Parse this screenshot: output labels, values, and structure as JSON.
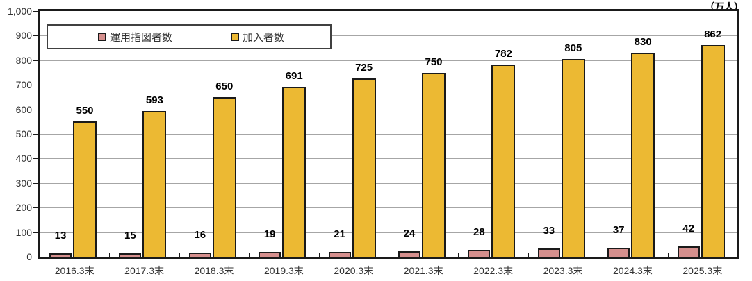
{
  "chart_data": {
    "type": "bar",
    "title": "",
    "unit_label": "（万人）",
    "categories": [
      "2016.3末",
      "2017.3末",
      "2018.3末",
      "2019.3末",
      "2020.3末",
      "2021.3末",
      "2022.3末",
      "2023.3末",
      "2024.3末",
      "2025.3末"
    ],
    "series": [
      {
        "key": "instruction-holders",
        "name": "運用指図者数",
        "color": "#d58f8d",
        "values": [
          13,
          15,
          16,
          19,
          21,
          24,
          28,
          33,
          37,
          42
        ]
      },
      {
        "key": "subscribers",
        "name": "加入者数",
        "color": "#ecb933",
        "values": [
          550,
          593,
          650,
          691,
          725,
          750,
          782,
          805,
          830,
          862
        ]
      }
    ],
    "ylim": [
      0,
      1000
    ],
    "ytick_interval": 100,
    "ytick_labels": [
      "0",
      "100",
      "200",
      "300",
      "400",
      "500",
      "600",
      "700",
      "800",
      "900",
      "1,000"
    ],
    "grid": true,
    "legend_position": "top-left-inside",
    "colors": {
      "bar_border": "#1a1a1a",
      "gridline": "#a6a6a6",
      "plot_border": "#1a1a1a",
      "axis_text": "#333333",
      "value_text": "#000000"
    }
  }
}
